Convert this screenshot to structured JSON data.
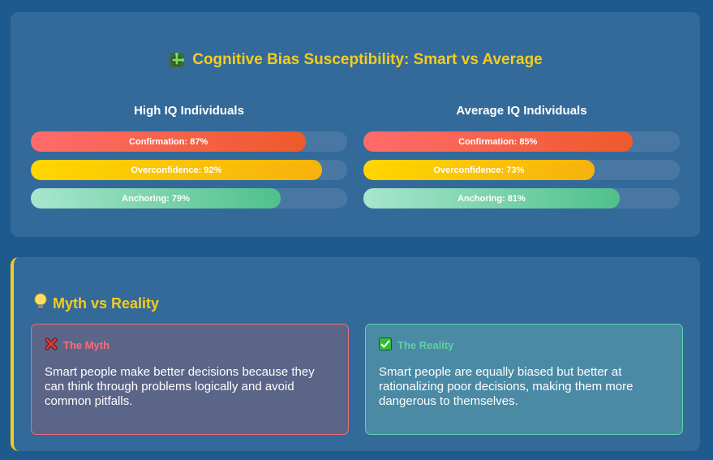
{
  "header": {
    "title": "Cognitive Bias Susceptibility: Smart vs Average",
    "icon": "puzzle-icon"
  },
  "groups": [
    {
      "heading": "High IQ Individuals",
      "bars": [
        {
          "label": "Confirmation: 87%",
          "value": 87,
          "color": "#ee5a2a"
        },
        {
          "label": "Overconfidence: 92%",
          "value": 92,
          "color": "#f7b20d"
        },
        {
          "label": "Anchoring: 79%",
          "value": 79,
          "color": "#4fc08b"
        }
      ]
    },
    {
      "heading": "Average IQ Individuals",
      "bars": [
        {
          "label": "Confirmation: 85%",
          "value": 85,
          "color": "#ee5a2a"
        },
        {
          "label": "Overconfidence: 73%",
          "value": 73,
          "color": "#f7b20d"
        },
        {
          "label": "Anchoring: 81%",
          "value": 81,
          "color": "#4fc08b"
        }
      ]
    }
  ],
  "myth_section": {
    "title": "Myth vs Reality",
    "icon": "lightbulb-icon",
    "myth": {
      "heading": "The Myth",
      "icon": "cross-mark-icon",
      "text": "Smart people make better decisions because they can think through problems logically and avoid common pitfalls."
    },
    "reality": {
      "heading": "The Reality",
      "icon": "check-mark-icon",
      "text": "Smart people are equally biased but better at rationalizing poor decisions, making them more dangerous to themselves."
    }
  },
  "colors": {
    "background": "#1f5a8e",
    "panel": "#336a99",
    "accent": "#f5cc1e"
  }
}
